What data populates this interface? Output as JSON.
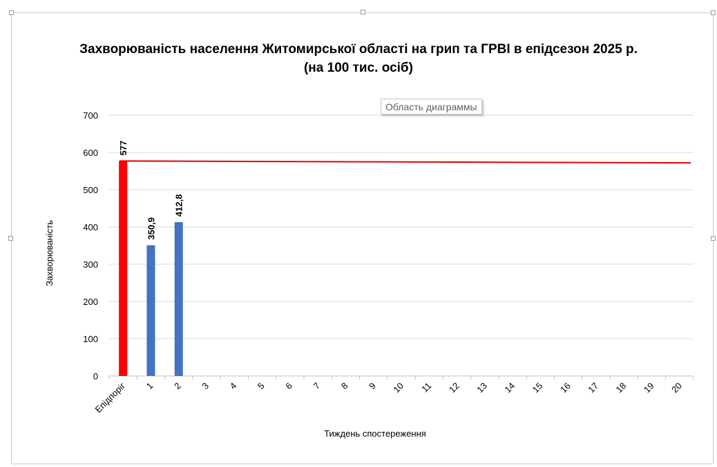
{
  "window": {
    "tooltip": "Область диаграммы"
  },
  "chart_data": {
    "type": "bar",
    "title": "Захворюваність населення Житомирської області на грип та ГРВІ в епідсезон 2025 р.",
    "subtitle": "(на 100 тис. осіб)",
    "xlabel": "Тиждень спостереження",
    "ylabel": "Захворюваність",
    "ylim": [
      0,
      700
    ],
    "yticks": [
      0,
      100,
      200,
      300,
      400,
      500,
      600,
      700
    ],
    "grid": true,
    "legend": "none",
    "categories": [
      "Епідпоріг",
      "1",
      "2",
      "3",
      "4",
      "5",
      "6",
      "7",
      "8",
      "9",
      "10",
      "11",
      "12",
      "13",
      "14",
      "15",
      "16",
      "17",
      "18",
      "19",
      "20"
    ],
    "series": [
      {
        "type": "bar",
        "values": [
          577,
          350.9,
          412.8,
          null,
          null,
          null,
          null,
          null,
          null,
          null,
          null,
          null,
          null,
          null,
          null,
          null,
          null,
          null,
          null,
          null,
          null
        ],
        "labels": [
          "577",
          "350,9",
          "412,8"
        ],
        "colors": [
          "#ff0000",
          "#4472c4",
          "#4472c4"
        ]
      },
      {
        "type": "line",
        "color": "#e00000",
        "start_value": 577,
        "end_value": 572
      }
    ]
  }
}
